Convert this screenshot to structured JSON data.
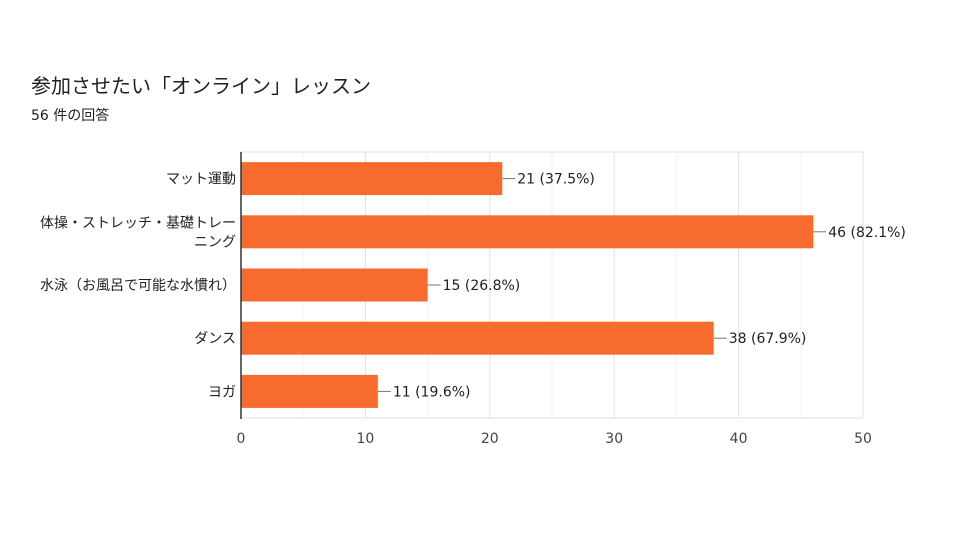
{
  "title": "参加させたい「オンライン」レッスン",
  "subtitle": "56 件の回答",
  "colors": {
    "bar": "#f76b2f",
    "grid": "#e0e0e0",
    "axis": "#333333",
    "text": "#212121"
  },
  "chart_data": {
    "type": "bar",
    "orientation": "horizontal",
    "title": "参加させたい「オンライン」レッスン",
    "subtitle": "56 件の回答",
    "categories": [
      [
        "マット運動"
      ],
      [
        "体操・ストレッチ・基礎トレー",
        "ニング"
      ],
      [
        "水泳（お風呂で可能な水慣れ）"
      ],
      [
        "ダンス"
      ],
      [
        "ヨガ"
      ]
    ],
    "values": [
      21,
      46,
      15,
      38,
      11
    ],
    "data_labels": [
      "21 (37.5%)",
      "46 (82.1%)",
      "15 (26.8%)",
      "38 (67.9%)",
      "11 (19.6%)"
    ],
    "xlim": [
      0,
      50
    ],
    "xticks": [
      "0",
      "10",
      "20",
      "30",
      "40",
      "50"
    ],
    "grid": true,
    "legend": "none"
  }
}
